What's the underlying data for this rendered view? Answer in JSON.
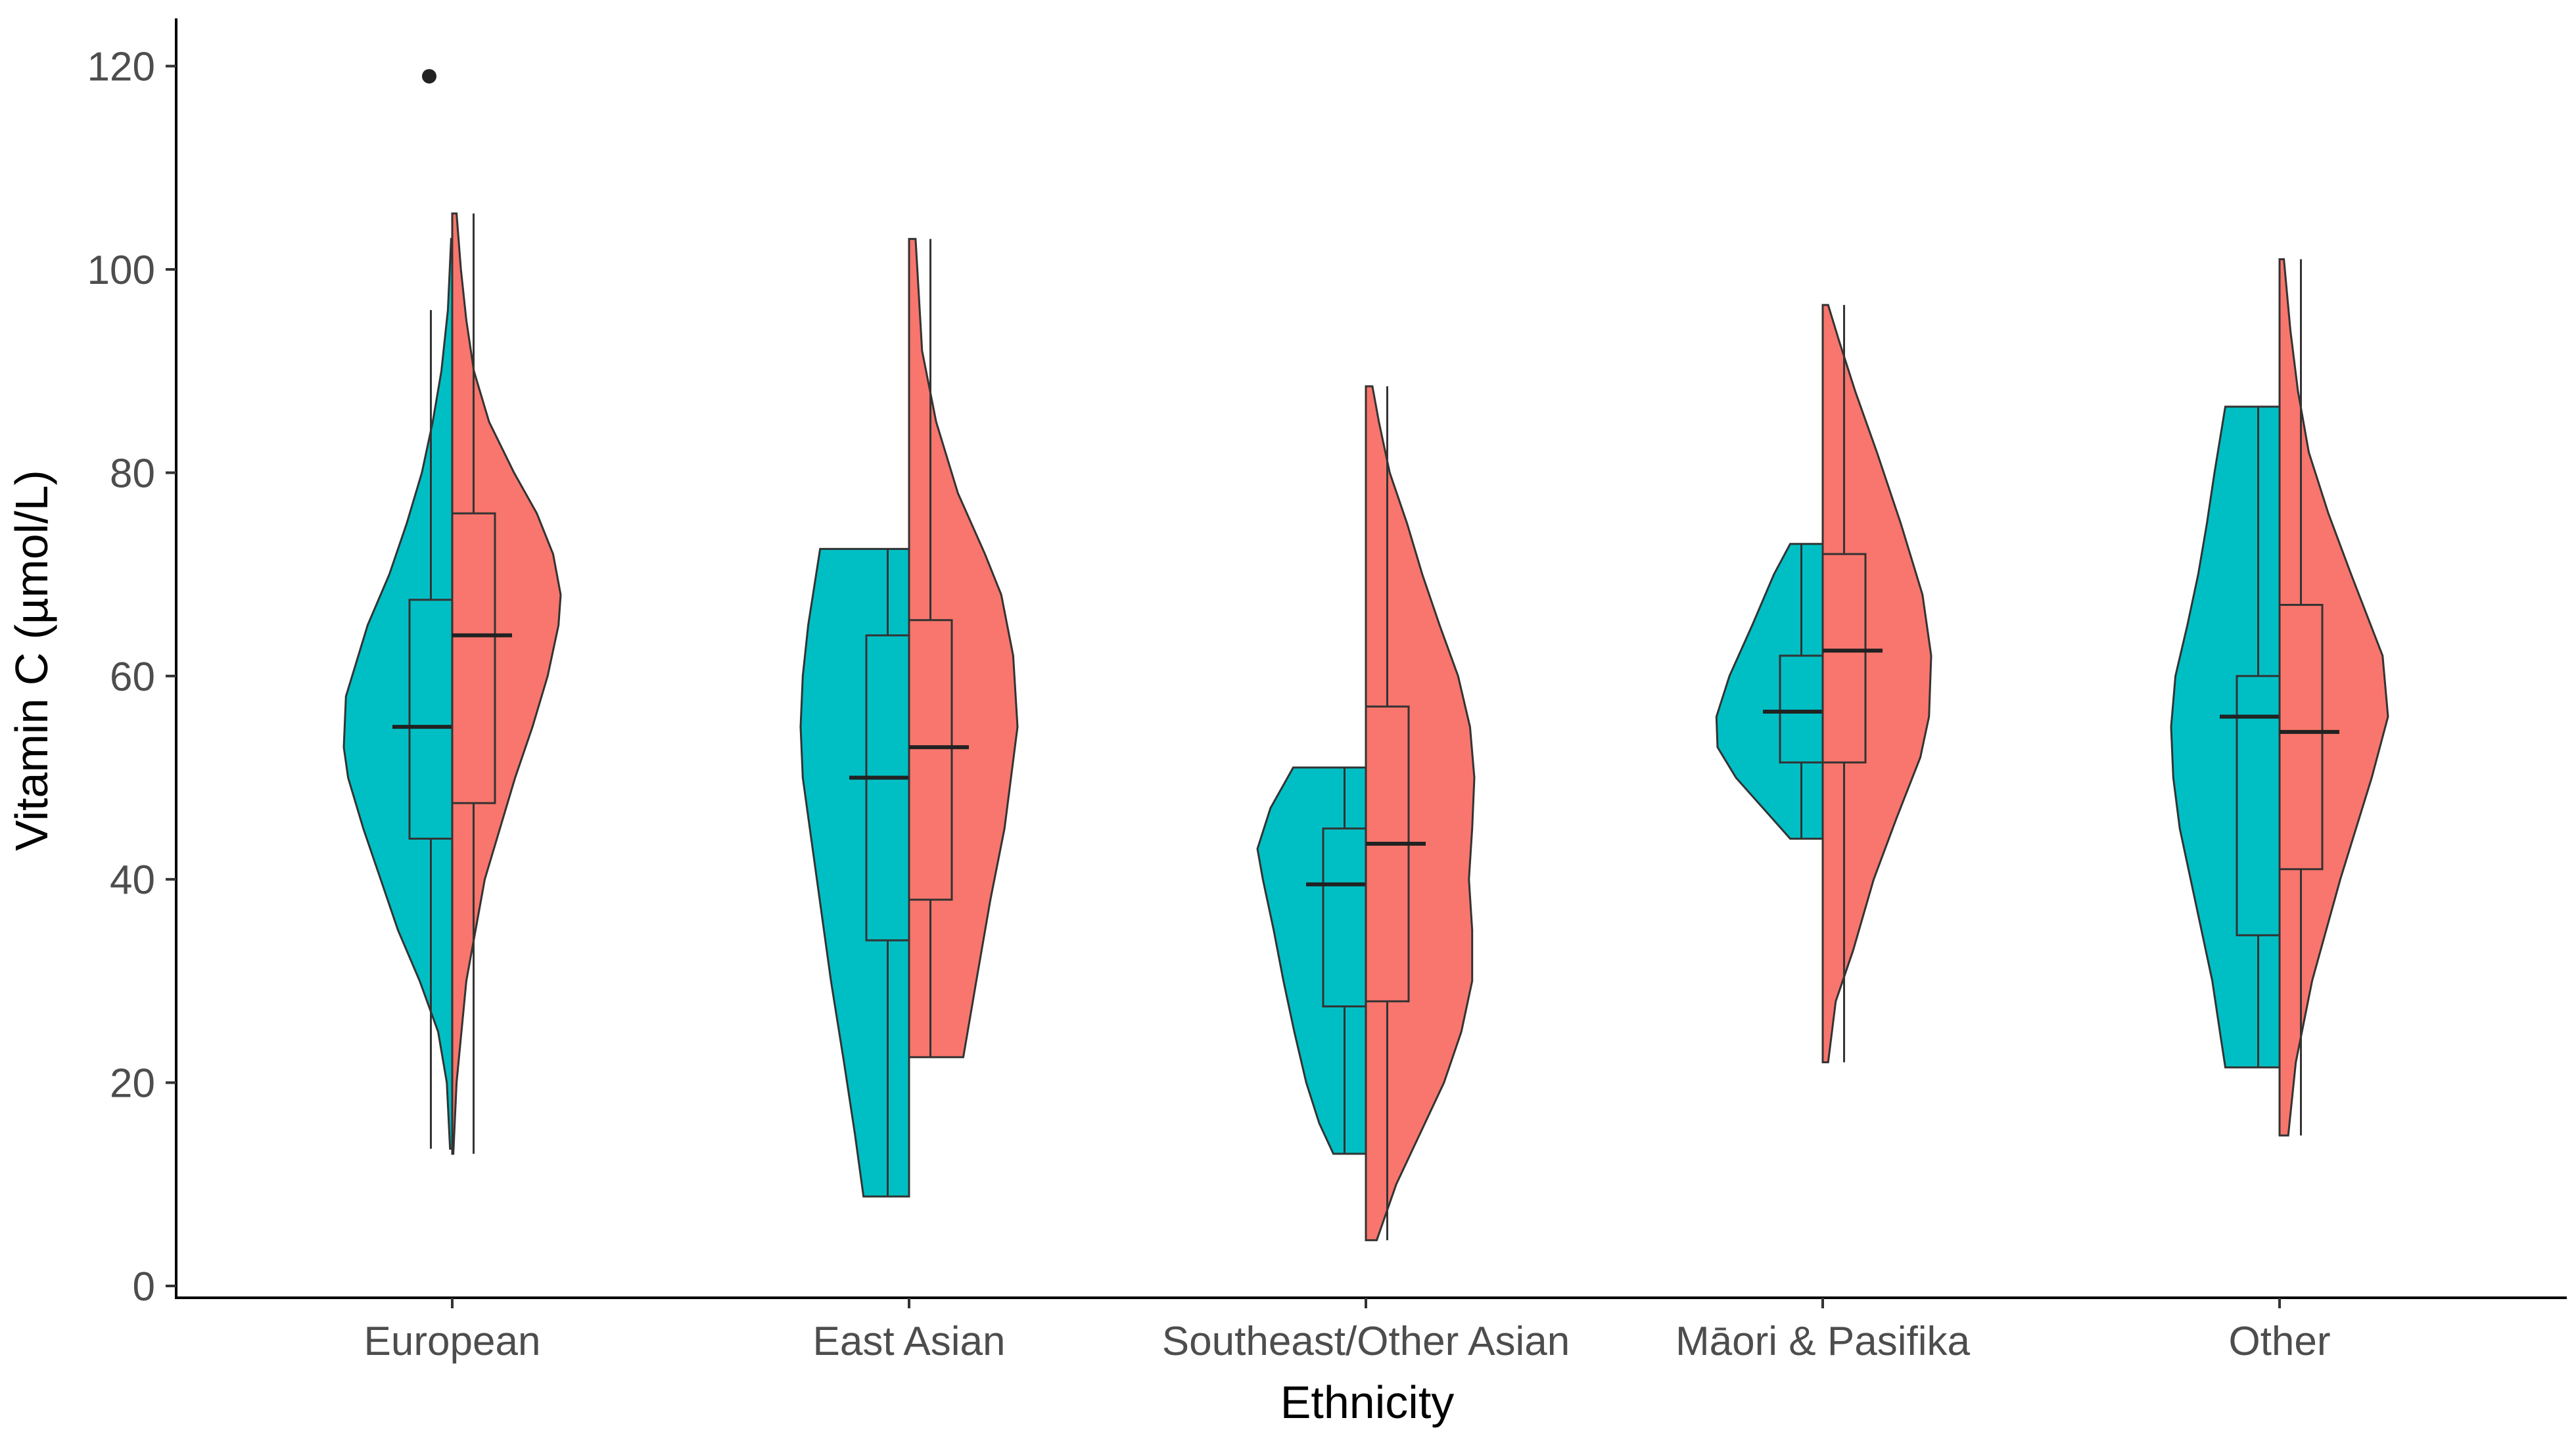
{
  "chart_data": {
    "type": "split-violin-boxplot",
    "xlabel": "Ethnicity",
    "ylabel": "Vitamin C (µmol/L)",
    "ylim": [
      0,
      120
    ],
    "yticks": [
      0,
      20,
      40,
      60,
      80,
      100,
      120
    ],
    "categories": [
      "European",
      "East Asian",
      "Southeast/Other Asian",
      "Māori & Pasifika",
      "Other"
    ],
    "grid": false,
    "legend": "none",
    "series": [
      {
        "color": "#00BFC4",
        "side": "left",
        "groups": [
          {
            "category": "European",
            "violin": [
              [
                13.5,
                0.02
              ],
              [
                20,
                0.05
              ],
              [
                25,
                0.13
              ],
              [
                30,
                0.3
              ],
              [
                35,
                0.5
              ],
              [
                40,
                0.66
              ],
              [
                45,
                0.82
              ],
              [
                50,
                0.96
              ],
              [
                53,
                1.0
              ],
              [
                58,
                0.98
              ],
              [
                65,
                0.78
              ],
              [
                70,
                0.58
              ],
              [
                75,
                0.42
              ],
              [
                80,
                0.28
              ],
              [
                85,
                0.18
              ],
              [
                90,
                0.1
              ],
              [
                96,
                0.04
              ],
              [
                103,
                0.01
              ]
            ],
            "box": {
              "whisker_low": 13.5,
              "q1": 44,
              "median": 55,
              "q3": 67.5,
              "whisker_high": 96
            },
            "outliers": [
              119
            ]
          },
          {
            "category": "East Asian",
            "violin": [
              [
                8.8,
                0.42
              ],
              [
                15,
                0.5
              ],
              [
                22,
                0.6
              ],
              [
                30,
                0.72
              ],
              [
                40,
                0.85
              ],
              [
                50,
                0.98
              ],
              [
                55,
                1.0
              ],
              [
                60,
                0.98
              ],
              [
                65,
                0.93
              ],
              [
                72.5,
                0.82
              ]
            ],
            "box": {
              "whisker_low": 8.8,
              "q1": 34,
              "median": 50,
              "q3": 64,
              "whisker_high": 72.5
            },
            "outliers": []
          },
          {
            "category": "Southeast/Other Asian",
            "violin": [
              [
                13,
                0.3
              ],
              [
                16,
                0.43
              ],
              [
                20,
                0.55
              ],
              [
                25,
                0.66
              ],
              [
                30,
                0.76
              ],
              [
                35,
                0.85
              ],
              [
                40,
                0.95
              ],
              [
                43,
                1.0
              ],
              [
                47,
                0.88
              ],
              [
                51,
                0.67
              ]
            ],
            "box": {
              "whisker_low": 13,
              "q1": 27.5,
              "median": 39.5,
              "q3": 45,
              "whisker_high": 51
            },
            "outliers": []
          },
          {
            "category": "Māori & Pasifika",
            "violin": [
              [
                44,
                0.3
              ],
              [
                47,
                0.55
              ],
              [
                50,
                0.8
              ],
              [
                53,
                0.97
              ],
              [
                56,
                0.98
              ],
              [
                60,
                0.86
              ],
              [
                65,
                0.65
              ],
              [
                70,
                0.45
              ],
              [
                73,
                0.3
              ]
            ],
            "box": {
              "whisker_low": 44,
              "q1": 51.5,
              "median": 56.5,
              "q3": 62,
              "whisker_high": 73
            },
            "outliers": []
          },
          {
            "category": "Other",
            "violin": [
              [
                21.5,
                0.5
              ],
              [
                25,
                0.55
              ],
              [
                30,
                0.62
              ],
              [
                35,
                0.72
              ],
              [
                40,
                0.82
              ],
              [
                45,
                0.92
              ],
              [
                50,
                0.98
              ],
              [
                55,
                1.0
              ],
              [
                60,
                0.96
              ],
              [
                65,
                0.85
              ],
              [
                70,
                0.75
              ],
              [
                75,
                0.67
              ],
              [
                80,
                0.6
              ],
              [
                86.5,
                0.5
              ]
            ],
            "box": {
              "whisker_low": 21.5,
              "q1": 34.5,
              "median": 56,
              "q3": 60,
              "whisker_high": 86.5
            },
            "outliers": []
          }
        ]
      },
      {
        "color": "#F8766D",
        "side": "right",
        "groups": [
          {
            "category": "European",
            "violin": [
              [
                13,
                0.01
              ],
              [
                20,
                0.04
              ],
              [
                30,
                0.13
              ],
              [
                40,
                0.3
              ],
              [
                50,
                0.58
              ],
              [
                55,
                0.74
              ],
              [
                60,
                0.88
              ],
              [
                65,
                0.98
              ],
              [
                68,
                1.0
              ],
              [
                72,
                0.93
              ],
              [
                76,
                0.78
              ],
              [
                80,
                0.57
              ],
              [
                85,
                0.34
              ],
              [
                90,
                0.2
              ],
              [
                95,
                0.13
              ],
              [
                100,
                0.08
              ],
              [
                105.5,
                0.04
              ]
            ],
            "box": {
              "whisker_low": 13,
              "q1": 47.5,
              "median": 64,
              "q3": 76,
              "whisker_high": 105.5
            },
            "outliers": []
          },
          {
            "category": "East Asian",
            "violin": [
              [
                22.5,
                0.5
              ],
              [
                30,
                0.62
              ],
              [
                38,
                0.75
              ],
              [
                45,
                0.88
              ],
              [
                55,
                1.0
              ],
              [
                62,
                0.96
              ],
              [
                68,
                0.85
              ],
              [
                72,
                0.7
              ],
              [
                78,
                0.45
              ],
              [
                85,
                0.25
              ],
              [
                92,
                0.12
              ],
              [
                103,
                0.06
              ]
            ],
            "box": {
              "whisker_low": 22.5,
              "q1": 38,
              "median": 53,
              "q3": 65.5,
              "whisker_high": 103
            },
            "outliers": []
          },
          {
            "category": "Southeast/Other Asian",
            "violin": [
              [
                4.5,
                0.1
              ],
              [
                10,
                0.28
              ],
              [
                15,
                0.5
              ],
              [
                20,
                0.72
              ],
              [
                25,
                0.88
              ],
              [
                30,
                0.98
              ],
              [
                35,
                0.98
              ],
              [
                40,
                0.95
              ],
              [
                45,
                0.98
              ],
              [
                50,
                1.0
              ],
              [
                55,
                0.96
              ],
              [
                60,
                0.85
              ],
              [
                65,
                0.68
              ],
              [
                70,
                0.52
              ],
              [
                75,
                0.38
              ],
              [
                80,
                0.22
              ],
              [
                85,
                0.12
              ],
              [
                88.5,
                0.06
              ]
            ],
            "box": {
              "whisker_low": 4.5,
              "q1": 28,
              "median": 43.5,
              "q3": 57,
              "whisker_high": 88.5
            },
            "outliers": []
          },
          {
            "category": "Māori & Pasifika",
            "violin": [
              [
                22,
                0.05
              ],
              [
                28,
                0.12
              ],
              [
                33,
                0.28
              ],
              [
                40,
                0.47
              ],
              [
                46,
                0.68
              ],
              [
                52,
                0.9
              ],
              [
                56,
                0.98
              ],
              [
                62,
                1.0
              ],
              [
                68,
                0.92
              ],
              [
                75,
                0.72
              ],
              [
                82,
                0.5
              ],
              [
                88,
                0.3
              ],
              [
                93,
                0.15
              ],
              [
                96.5,
                0.05
              ]
            ],
            "box": {
              "whisker_low": 22,
              "q1": 51.5,
              "median": 62.5,
              "q3": 72,
              "whisker_high": 96.5
            },
            "outliers": []
          },
          {
            "category": "Other",
            "violin": [
              [
                14.8,
                0.08
              ],
              [
                22,
                0.15
              ],
              [
                30,
                0.3
              ],
              [
                40,
                0.56
              ],
              [
                50,
                0.85
              ],
              [
                56,
                1.0
              ],
              [
                62,
                0.95
              ],
              [
                70,
                0.66
              ],
              [
                76,
                0.45
              ],
              [
                82,
                0.27
              ],
              [
                88,
                0.17
              ],
              [
                94,
                0.1
              ],
              [
                101,
                0.04
              ]
            ],
            "box": {
              "whisker_low": 14.8,
              "q1": 41,
              "median": 54.5,
              "q3": 67,
              "whisker_high": 101
            },
            "outliers": []
          }
        ]
      }
    ]
  }
}
